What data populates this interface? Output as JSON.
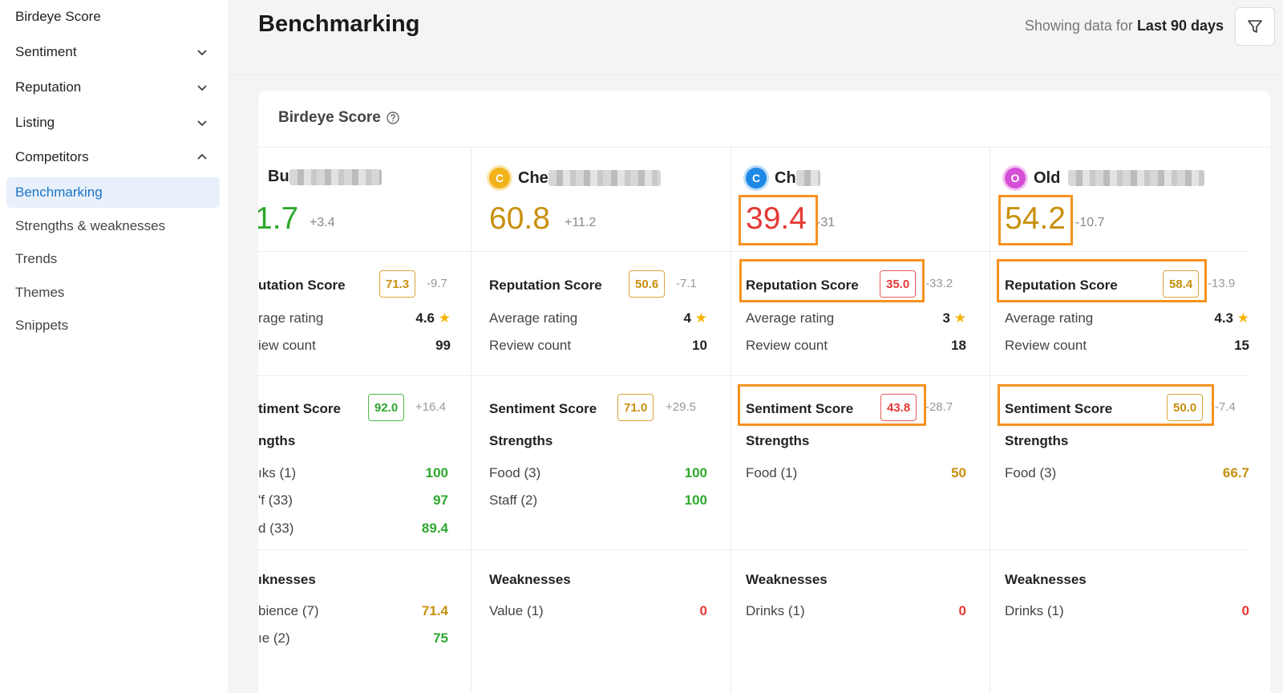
{
  "sidebar": {
    "items": [
      {
        "label": "Birdeye Score"
      },
      {
        "label": "Sentiment"
      },
      {
        "label": "Reputation"
      },
      {
        "label": "Listing"
      },
      {
        "label": "Competitors"
      }
    ],
    "subitems": [
      {
        "label": "Benchmarking"
      },
      {
        "label": "Strengths & weaknesses"
      },
      {
        "label": "Trends"
      },
      {
        "label": "Themes"
      },
      {
        "label": "Snippets"
      }
    ]
  },
  "header": {
    "title": "Benchmarking",
    "showing_prefix": "Showing data for",
    "showing_range": "Last 90 days"
  },
  "card": {
    "title": "Birdeye Score"
  },
  "labels": {
    "reputation_score": "Reputation Score",
    "average_rating": "Average rating",
    "review_count": "Review count",
    "sentiment_score": "Sentiment Score",
    "strengths": "Strengths",
    "weaknesses": "Weaknesses"
  },
  "columns": [
    {
      "name": "Bu",
      "score": "1.7",
      "score_delta": "+3.4",
      "reputation_score": "71.3",
      "reputation_delta": "-9.7",
      "rep_label": "utation Score",
      "avg_label": "rage rating",
      "avg_rating": "4.6",
      "count_label": "iew count",
      "review_count": "99",
      "sentiment_label": "timent Score",
      "sentiment_score": "92.0",
      "sentiment_delta": "+16.4",
      "strengths_label": "ngths",
      "strengths": [
        {
          "label": "ıks (1)",
          "value": "100"
        },
        {
          "label": "'f (33)",
          "value": "97"
        },
        {
          "label": "d (33)",
          "value": "89.4"
        }
      ],
      "weaknesses_label": "ıknesses",
      "weaknesses": [
        {
          "label": "bience (7)",
          "value": "71.4"
        },
        {
          "label": "ıe (2)",
          "value": "75"
        }
      ]
    },
    {
      "badge": "C",
      "name": "Che",
      "score": "60.8",
      "score_delta": "+11.2",
      "reputation_score": "50.6",
      "reputation_delta": "-7.1",
      "avg_rating": "4",
      "review_count": "10",
      "sentiment_score": "71.0",
      "sentiment_delta": "+29.5",
      "strengths": [
        {
          "label": "Food (3)",
          "value": "100"
        },
        {
          "label": "Staff (2)",
          "value": "100"
        }
      ],
      "weaknesses": [
        {
          "label": "Value (1)",
          "value": "0"
        }
      ]
    },
    {
      "badge": "C",
      "name": "Ch",
      "score": "39.4",
      "score_delta": "-31",
      "reputation_score": "35.0",
      "reputation_delta": "-33.2",
      "avg_rating": "3",
      "review_count": "18",
      "sentiment_score": "43.8",
      "sentiment_delta": "-28.7",
      "strengths": [
        {
          "label": "Food (1)",
          "value": "50"
        }
      ],
      "weaknesses": [
        {
          "label": "Drinks (1)",
          "value": "0"
        }
      ]
    },
    {
      "badge": "O",
      "name": "Old",
      "score": "54.2",
      "score_delta": "-10.7",
      "reputation_score": "58.4",
      "reputation_delta": "-13.9",
      "avg_rating": "4.3",
      "review_count": "15",
      "sentiment_score": "50.0",
      "sentiment_delta": "-7.4",
      "strengths": [
        {
          "label": "Food (3)",
          "value": "66.7"
        }
      ],
      "weaknesses": [
        {
          "label": "Drinks (1)",
          "value": "0"
        }
      ]
    }
  ],
  "colors": {
    "accent": "#1a73c9",
    "highlight": "#f6921e",
    "green": "#2ea82e",
    "gold": "#c8900d",
    "red": "#e53935"
  }
}
